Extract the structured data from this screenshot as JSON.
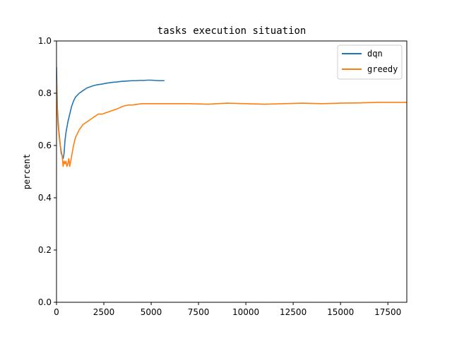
{
  "chart_data": {
    "type": "line",
    "title": "tasks execution situation",
    "xlabel": "",
    "ylabel": "percent",
    "xlim": [
      0,
      18500
    ],
    "ylim": [
      0,
      1.0
    ],
    "xticks": [
      0,
      2500,
      5000,
      7500,
      10000,
      12500,
      15000,
      17500
    ],
    "yticks": [
      0.0,
      0.2,
      0.4,
      0.6,
      0.8,
      1.0
    ],
    "xtick_labels": [
      "0",
      "2500",
      "5000",
      "7500",
      "10000",
      "12500",
      "15000",
      "17500"
    ],
    "ytick_labels": [
      "0.0",
      "0.2",
      "0.4",
      "0.6",
      "0.8",
      "1.0"
    ],
    "grid": false,
    "legend_position": "top-right",
    "series": [
      {
        "name": "dqn",
        "color": "#1f77b4",
        "x": [
          0,
          20,
          50,
          80,
          120,
          160,
          200,
          250,
          300,
          350,
          400,
          450,
          500,
          600,
          700,
          800,
          900,
          1000,
          1200,
          1400,
          1600,
          1800,
          2000,
          2200,
          2400,
          2600,
          2800,
          3000,
          3200,
          3400,
          3600,
          3800,
          4000,
          4200,
          4400,
          4600,
          4800,
          5000,
          5200,
          5400,
          5700
        ],
        "y": [
          0.9,
          0.82,
          0.74,
          0.7,
          0.66,
          0.63,
          0.6,
          0.57,
          0.56,
          0.55,
          0.57,
          0.62,
          0.65,
          0.69,
          0.72,
          0.75,
          0.77,
          0.785,
          0.8,
          0.81,
          0.82,
          0.825,
          0.83,
          0.833,
          0.835,
          0.838,
          0.84,
          0.842,
          0.843,
          0.845,
          0.846,
          0.847,
          0.848,
          0.848,
          0.849,
          0.849,
          0.85,
          0.85,
          0.849,
          0.848,
          0.848
        ]
      },
      {
        "name": "greedy",
        "color": "#ff7f0e",
        "x": [
          0,
          20,
          50,
          80,
          120,
          160,
          200,
          250,
          300,
          350,
          400,
          450,
          500,
          550,
          600,
          650,
          700,
          800,
          900,
          1000,
          1200,
          1400,
          1600,
          1800,
          2000,
          2200,
          2400,
          2600,
          2800,
          3000,
          3200,
          3500,
          3800,
          4000,
          4500,
          5000,
          5500,
          6000,
          7000,
          8000,
          9000,
          10000,
          11000,
          12000,
          13000,
          14000,
          15000,
          16000,
          17000,
          18000,
          18500
        ],
        "y": [
          0.85,
          0.78,
          0.72,
          0.68,
          0.65,
          0.62,
          0.6,
          0.58,
          0.56,
          0.52,
          0.54,
          0.53,
          0.54,
          0.52,
          0.53,
          0.55,
          0.52,
          0.56,
          0.6,
          0.63,
          0.66,
          0.68,
          0.69,
          0.7,
          0.71,
          0.72,
          0.72,
          0.725,
          0.73,
          0.735,
          0.74,
          0.75,
          0.755,
          0.755,
          0.76,
          0.76,
          0.76,
          0.76,
          0.76,
          0.758,
          0.762,
          0.76,
          0.758,
          0.76,
          0.762,
          0.76,
          0.762,
          0.763,
          0.765,
          0.765,
          0.765
        ]
      }
    ]
  }
}
